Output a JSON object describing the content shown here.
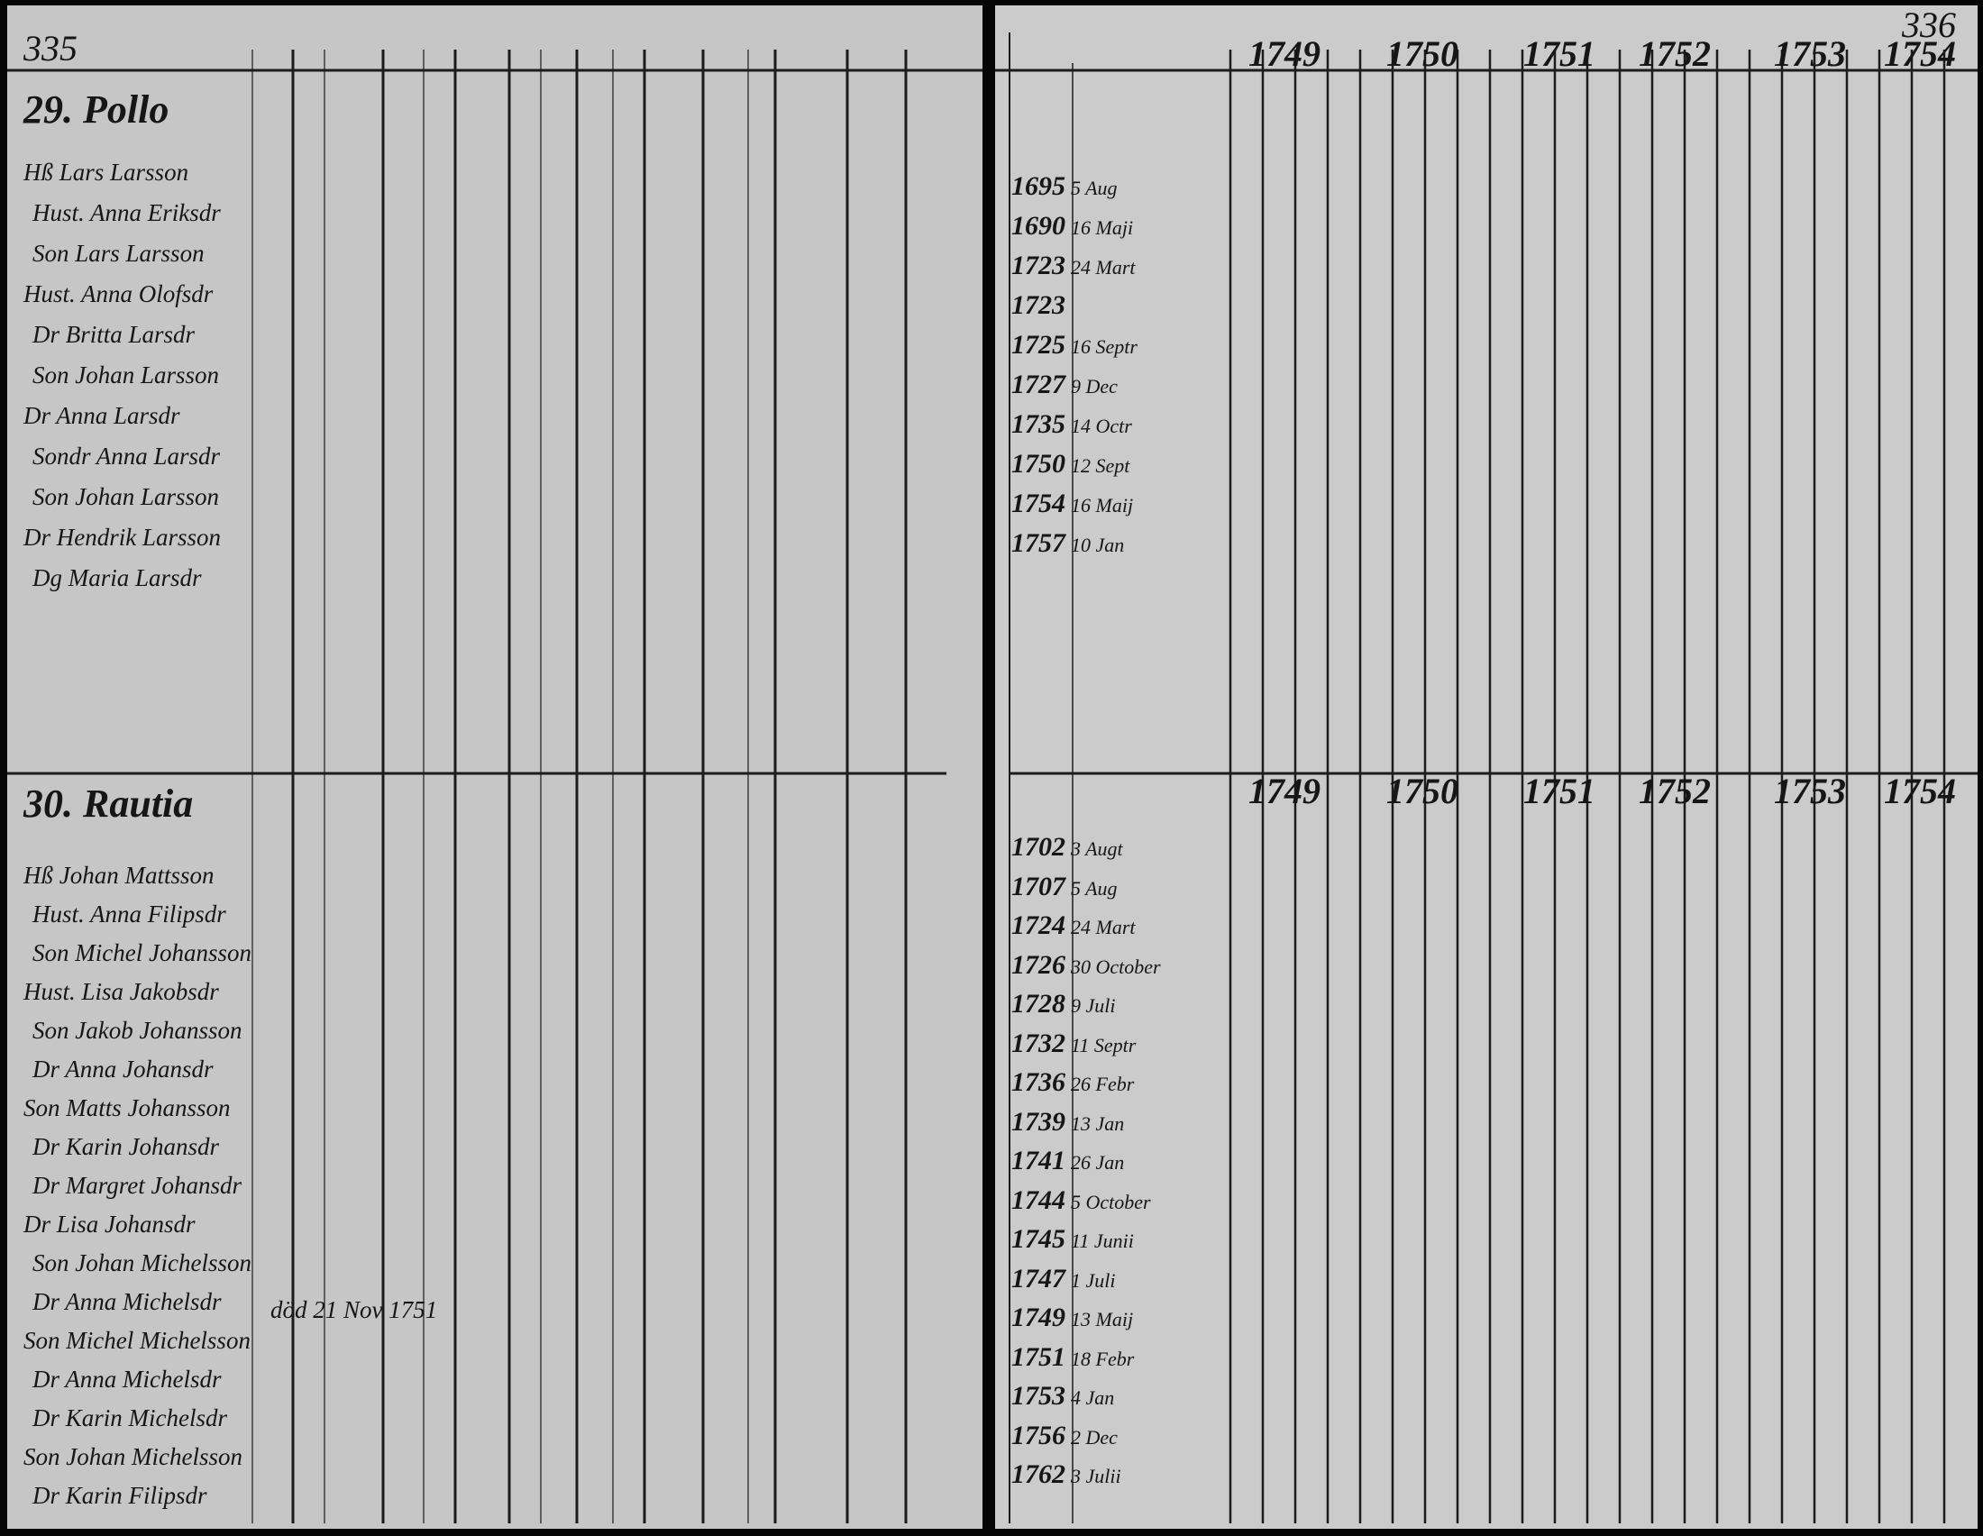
{
  "left_page": {
    "page_number": "335",
    "sections": [
      {
        "header": "29. Pollo",
        "names": [
          "Hß Lars Larsson",
          "Hust. Anna Eriksdr",
          "Son Lars Larsson",
          "Hust. Anna Olofsdr",
          "Dr Britta Larsdr",
          "Son Johan Larsson",
          "Dr Anna Larsdr",
          "Sondr Anna Larsdr",
          "Son Johan Larsson",
          "Dr Hendrik Larsson",
          "Dg Maria Larsdr"
        ]
      },
      {
        "header": "30. Rautia",
        "names": [
          "Hß Johan Mattsson",
          "Hust. Anna Filipsdr",
          "Son Michel Johansson",
          "Hust. Lisa Jakobsdr",
          "Son Jakob Johansson",
          "Dr Anna Johansdr",
          "Son Matts Johansson",
          "Dr Karin Johansdr",
          "Dr Margret Johansdr",
          "Dr Lisa Johansdr",
          "Son Johan Michelsson",
          "Dr Anna Michelsdr",
          "Son Michel Michelsson",
          "Dr Anna Michelsdr",
          "Dr Karin Michelsdr",
          "Son Johan Michelsson",
          "Dr Karin Filipsdr"
        ]
      }
    ],
    "remarks": [
      "död 21 Nov 1751"
    ]
  },
  "right_page": {
    "page_number": "336",
    "sections": [
      {
        "years": [
          "1749",
          "1750",
          "1751",
          "1752",
          "1753",
          "1754"
        ],
        "births": [
          {
            "year": "1695",
            "date": "5 Aug"
          },
          {
            "year": "1690",
            "date": "16 Maji"
          },
          {
            "year": "1723",
            "date": "24 Mart"
          },
          {
            "year": "1723"
          },
          {
            "year": "1725",
            "date": "16 Septr"
          },
          {
            "year": "1727",
            "date": "9 Dec"
          },
          {
            "year": "1735",
            "date": "14 Octr"
          },
          {
            "year": "1750",
            "date": "12 Sept"
          },
          {
            "year": "1754",
            "date": "16 Maij"
          },
          {
            "year": "1757",
            "date": "10 Jan"
          }
        ]
      },
      {
        "years": [
          "1749",
          "1750",
          "1751",
          "1752",
          "1753",
          "1754"
        ],
        "births": [
          {
            "year": "1702",
            "date": "3 Augt"
          },
          {
            "year": "1707",
            "date": "5 Aug"
          },
          {
            "year": "1724",
            "date": "24 Mart"
          },
          {
            "year": "1726",
            "date": "30 October"
          },
          {
            "year": "1728",
            "date": "9 Juli"
          },
          {
            "year": "1732",
            "date": "11 Septr"
          },
          {
            "year": "1736",
            "date": "26 Febr"
          },
          {
            "year": "1739",
            "date": "13 Jan"
          },
          {
            "year": "1741",
            "date": "26 Jan"
          },
          {
            "year": "1744",
            "date": "5 October"
          },
          {
            "year": "1745",
            "date": "11 Junii"
          },
          {
            "year": "1747",
            "date": "1 Juli"
          },
          {
            "year": "1749",
            "date": "13 Maij"
          },
          {
            "year": "1751",
            "date": "18 Febr"
          },
          {
            "year": "1753",
            "date": "4 Jan"
          },
          {
            "year": "1756",
            "date": "2 Dec"
          },
          {
            "year": "1762",
            "date": "3 Julii"
          }
        ]
      }
    ]
  }
}
